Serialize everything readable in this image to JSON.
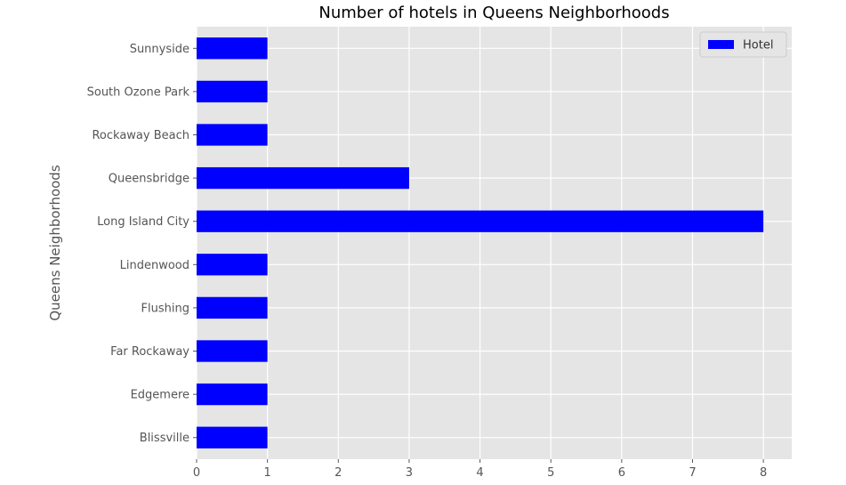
{
  "chart_data": {
    "type": "bar",
    "orientation": "horizontal",
    "title": "Number of hotels in Queens Neighborhoods",
    "xlabel": "",
    "ylabel": "Queens Neighborhoods",
    "categories": [
      "Blissville",
      "Edgemere",
      "Far Rockaway",
      "Flushing",
      "Lindenwood",
      "Long Island City",
      "Queensbridge",
      "Rockaway Beach",
      "South Ozone Park",
      "Sunnyside"
    ],
    "series": [
      {
        "name": "Hotel",
        "values": [
          1,
          1,
          1,
          1,
          1,
          8,
          3,
          1,
          1,
          1
        ]
      }
    ],
    "xlim": [
      0,
      8.4
    ],
    "xticks": [
      0,
      1,
      2,
      3,
      4,
      5,
      6,
      7,
      8
    ],
    "grid": true,
    "legend_position": "top-right",
    "colors": {
      "bar": "#0000ff",
      "plot_background": "#e5e5e5",
      "grid": "#ffffff"
    }
  }
}
